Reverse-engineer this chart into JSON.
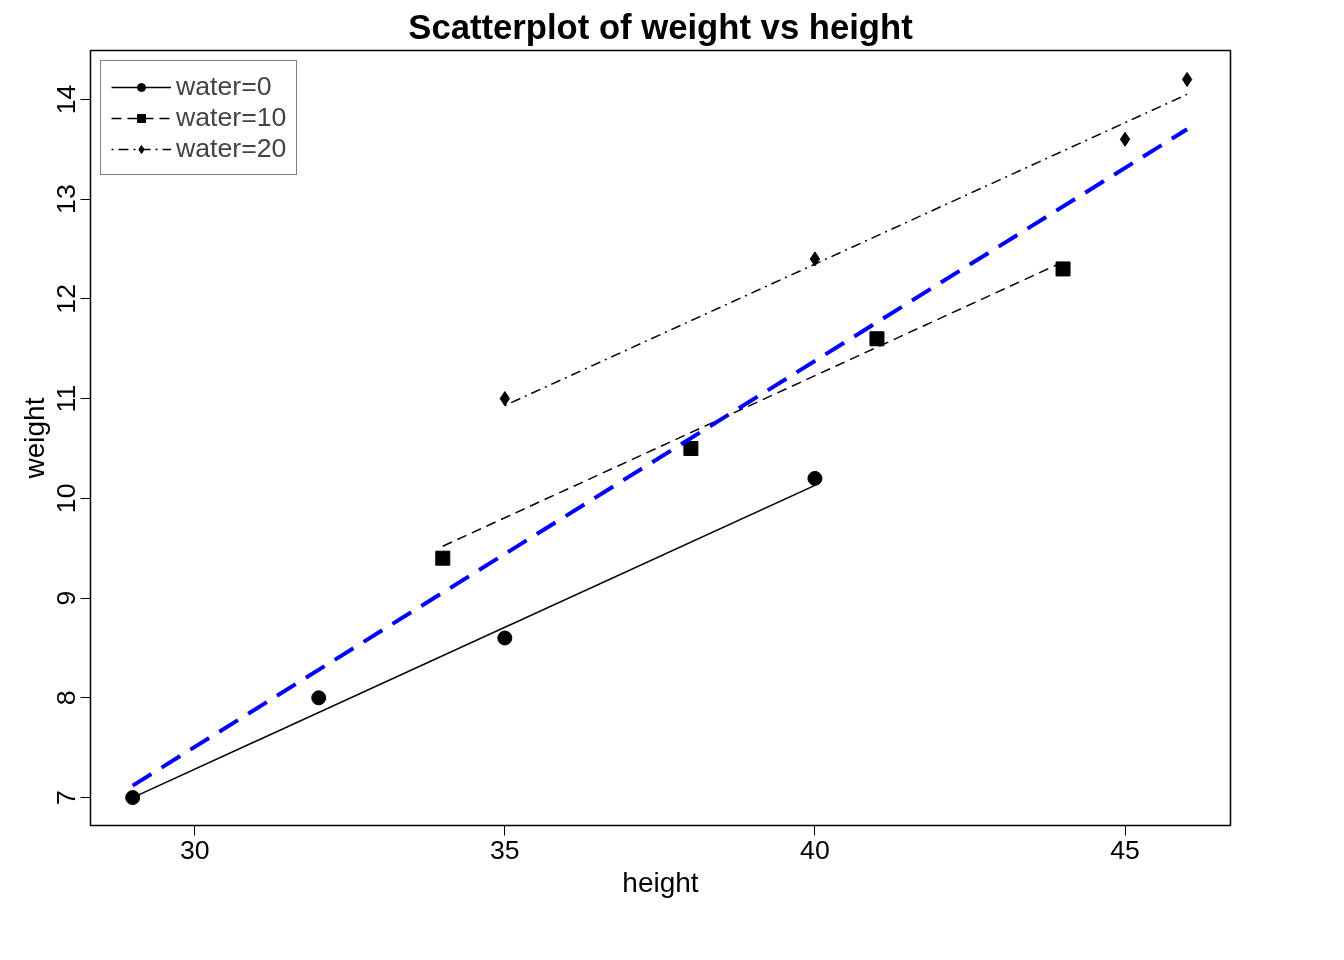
{
  "chart_data": {
    "type": "scatter",
    "title": "Scatterplot of weight vs height",
    "xlabel": "height",
    "ylabel": "weight",
    "xlim": [
      28.32,
      46.7
    ],
    "ylim": [
      6.72,
      14.49
    ],
    "xticks": [
      30,
      35,
      40,
      45
    ],
    "yticks": [
      7,
      8,
      9,
      10,
      11,
      12,
      13,
      14
    ],
    "grid": false,
    "legend": "top left",
    "series": [
      {
        "name": "water=0",
        "marker": "circle",
        "color": "#000000",
        "x": [
          29,
          32,
          35,
          40
        ],
        "values": [
          7.0,
          8.0,
          8.6,
          10.2
        ]
      },
      {
        "type": "line",
        "line_style": "solid",
        "color": "#000000",
        "x": [
          29,
          40
        ],
        "values": [
          7.0,
          10.13
        ]
      },
      {
        "name": "water=10",
        "marker": "square",
        "color": "#000000",
        "x": [
          34,
          38,
          41,
          44
        ],
        "values": [
          9.4,
          10.5,
          11.6,
          12.3
        ]
      },
      {
        "type": "line",
        "line_style": "dashed",
        "color": "#000000",
        "x": [
          34,
          44
        ],
        "values": [
          9.52,
          12.37
        ]
      },
      {
        "name": "water=20",
        "marker": "diamond",
        "color": "#000000",
        "x": [
          35,
          40,
          45,
          46
        ],
        "values": [
          11.0,
          12.4,
          13.6,
          14.2
        ]
      },
      {
        "type": "line",
        "line_style": "dashdot",
        "color": "#000000",
        "x": [
          35,
          46
        ],
        "values": [
          10.93,
          14.05
        ]
      },
      {
        "type": "line",
        "line_style": "dashed",
        "color": "#0000ff",
        "x": [
          29,
          46
        ],
        "values": [
          7.12,
          13.7
        ]
      }
    ]
  }
}
